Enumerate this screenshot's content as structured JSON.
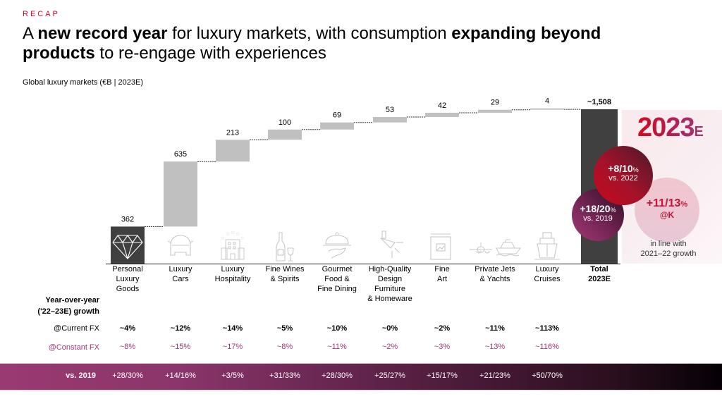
{
  "header": {
    "kicker": "RECAP",
    "title_parts": [
      {
        "text": "A ",
        "bold": false
      },
      {
        "text": "new record year",
        "bold": true
      },
      {
        "text": " for luxury markets, with consumption ",
        "bold": false
      },
      {
        "text": "expanding beyond products",
        "bold": true
      },
      {
        "text": " to re-engage with experiences",
        "bold": false
      }
    ],
    "subtitle": "Global luxury markets (€B | 2023E)"
  },
  "chart_data": {
    "type": "waterfall",
    "title": "Global luxury markets (€B | 2023E)",
    "categories": [
      "Personal Luxury Goods",
      "Luxury Cars",
      "Luxury Hospitality",
      "Fine Wines & Spirits",
      "Gourmet Food & Fine Dining",
      "High-Quality Design Furniture & Homeware",
      "Fine Art",
      "Private Jets & Yachts",
      "Luxury Cruises",
      "Total 2023E"
    ],
    "category_lines": [
      [
        "Personal",
        "Luxury",
        "Goods"
      ],
      [
        "Luxury",
        "Cars"
      ],
      [
        "Luxury",
        "Hospitality"
      ],
      [
        "Fine Wines",
        "& Spirits"
      ],
      [
        "Gourmet",
        "Food &",
        "Fine Dining"
      ],
      [
        "High-Quality",
        "Design",
        "Furniture",
        "& Homeware"
      ],
      [
        "Fine",
        "Art"
      ],
      [
        "Private Jets",
        "& Yachts"
      ],
      [
        "Luxury",
        "Cruises"
      ],
      [
        "Total",
        "2023E"
      ]
    ],
    "values": [
      362,
      635,
      213,
      100,
      69,
      53,
      42,
      29,
      4,
      1508
    ],
    "value_labels": [
      "362",
      "635",
      "213",
      "100",
      "69",
      "53",
      "42",
      "29",
      "4",
      "~1,508"
    ],
    "is_total": [
      false,
      false,
      false,
      false,
      false,
      false,
      false,
      false,
      false,
      true
    ],
    "icons": [
      "diamond-icon",
      "car-icon",
      "hotel-icon",
      "wine-icon",
      "cloche-icon",
      "lamp-icon",
      "picture-frame-icon",
      "jet-yacht-icon",
      "cruise-ship-icon",
      null
    ],
    "colors": {
      "first": "#404040",
      "step": "#c0c0c0",
      "total": "#404040",
      "connector": "#333333"
    },
    "ylim": [
      0,
      1550
    ],
    "xlabel": "",
    "ylabel": ""
  },
  "highlight": {
    "year": "2023",
    "year_suffix": "E",
    "bubbles": [
      {
        "value": "+8/10",
        "unit": "%",
        "caption": "vs. 2022"
      },
      {
        "value": "+18/20",
        "unit": "%",
        "caption": "vs. 2019"
      },
      {
        "value": "+11/13",
        "unit": "%",
        "caption": "@K"
      }
    ],
    "note_line1": "in line with",
    "note_line2": "2021–22 growth"
  },
  "growth_table": {
    "heading_line1": "Year-over-year",
    "heading_line2": "('22–23E) growth",
    "current_fx_label": "@Current FX",
    "constant_fx_label": "@Constant FX",
    "current_fx": [
      "~4%",
      "~12%",
      "~14%",
      "~5%",
      "~10%",
      "~0%",
      "~2%",
      "~11%",
      "~113%"
    ],
    "constant_fx": [
      "~8%",
      "~15%",
      "~17%",
      "~8%",
      "~11%",
      "~2%",
      "~3%",
      "~13%",
      "~116%"
    ],
    "vs2019_label": "vs. 2019",
    "vs2019": [
      "+28/30%",
      "+14/16%",
      "+3/5%",
      "+31/33%",
      "+28/30%",
      "+25/27%",
      "+15/17%",
      "+21/23%",
      "+50/70%"
    ]
  }
}
